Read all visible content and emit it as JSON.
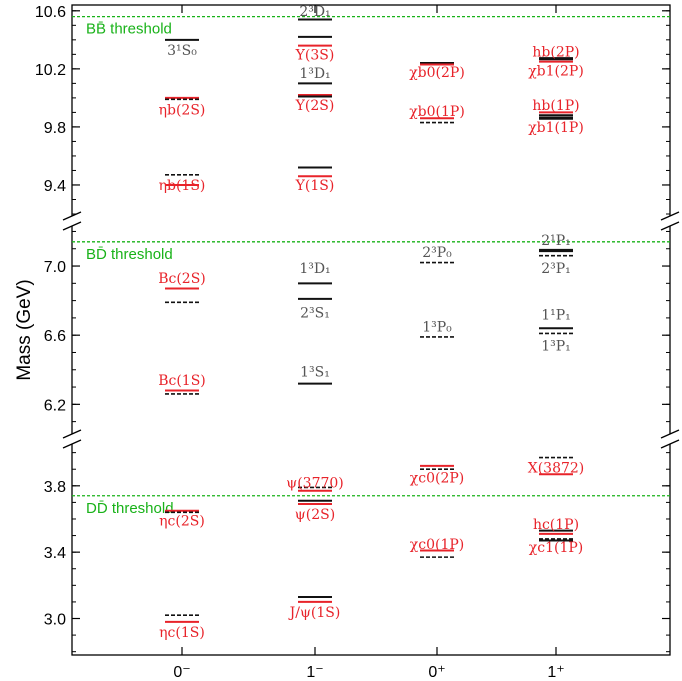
{
  "chart_data": {
    "type": "level-diagram",
    "ylabel": "Mass (GeV)",
    "categories": [
      "0⁻",
      "1⁻",
      "0⁺",
      "1⁺"
    ],
    "panels": [
      {
        "id": "bottomonium",
        "ylim": [
          9.2,
          10.64
        ],
        "ticks": [
          9.4,
          9.8,
          10.2,
          10.6
        ],
        "tick_labels": [
          "9.4",
          "9.8",
          "10.2",
          "10.6"
        ],
        "threshold": {
          "label": "BB̄ threshold",
          "value": 10.56
        },
        "levels": [
          {
            "cat": 0,
            "mass": 10.4,
            "style": "black"
          },
          {
            "cat": 0,
            "mass": 10.0,
            "style": "red"
          },
          {
            "cat": 0,
            "mass": 9.99,
            "style": "dash"
          },
          {
            "cat": 0,
            "mass": 9.47,
            "style": "dash"
          },
          {
            "cat": 0,
            "mass": 9.4,
            "style": "red"
          },
          {
            "cat": 1,
            "mass": 10.54,
            "style": "black"
          },
          {
            "cat": 1,
            "mass": 10.42,
            "style": "black"
          },
          {
            "cat": 1,
            "mass": 10.36,
            "style": "red"
          },
          {
            "cat": 1,
            "mass": 10.1,
            "style": "black"
          },
          {
            "cat": 1,
            "mass": 10.02,
            "style": "red"
          },
          {
            "cat": 1,
            "mass": 10.01,
            "style": "black"
          },
          {
            "cat": 1,
            "mass": 9.52,
            "style": "black"
          },
          {
            "cat": 1,
            "mass": 9.46,
            "style": "red"
          },
          {
            "cat": 2,
            "mass": 10.24,
            "style": "black"
          },
          {
            "cat": 2,
            "mass": 10.23,
            "style": "red"
          },
          {
            "cat": 2,
            "mass": 9.86,
            "style": "red"
          },
          {
            "cat": 2,
            "mass": 9.83,
            "style": "dash"
          },
          {
            "cat": 3,
            "mass": 10.27,
            "style": "thick"
          },
          {
            "cat": 3,
            "mass": 10.25,
            "style": "red"
          },
          {
            "cat": 3,
            "mass": 9.9,
            "style": "red"
          },
          {
            "cat": 3,
            "mass": 9.88,
            "style": "black"
          },
          {
            "cat": 3,
            "mass": 9.86,
            "style": "thick"
          }
        ],
        "labels": [
          {
            "cat": 0,
            "mass": 10.33,
            "text": "3¹S₀",
            "color": "gray"
          },
          {
            "cat": 0,
            "mass": 9.92,
            "text": "ηb(2S)",
            "color": "red"
          },
          {
            "cat": 0,
            "mass": 9.4,
            "text": "ηb(1S)",
            "color": "red"
          },
          {
            "cat": 1,
            "mass": 10.6,
            "text": "2³D₁",
            "color": "gray"
          },
          {
            "cat": 1,
            "mass": 10.3,
            "text": "Υ(3S)",
            "color": "red"
          },
          {
            "cat": 1,
            "mass": 10.17,
            "text": "1³D₁",
            "color": "gray"
          },
          {
            "cat": 1,
            "mass": 9.95,
            "text": "Υ(2S)",
            "color": "red"
          },
          {
            "cat": 1,
            "mass": 9.4,
            "text": "Υ(1S)",
            "color": "red"
          },
          {
            "cat": 2,
            "mass": 10.18,
            "text": "χb0(2P)",
            "color": "red"
          },
          {
            "cat": 2,
            "mass": 9.91,
            "text": "χb0(1P)",
            "color": "red"
          },
          {
            "cat": 3,
            "mass": 10.32,
            "text": "hb(2P)",
            "color": "red"
          },
          {
            "cat": 3,
            "mass": 10.19,
            "text": "χb1(2P)",
            "color": "red"
          },
          {
            "cat": 3,
            "mass": 9.95,
            "text": "hb(1P)",
            "color": "red"
          },
          {
            "cat": 3,
            "mass": 9.8,
            "text": "χb1(1P)",
            "color": "red"
          }
        ]
      },
      {
        "id": "bc",
        "ylim": [
          6.04,
          7.22
        ],
        "ticks": [
          6.2,
          6.6,
          7.0
        ],
        "tick_labels": [
          "6.2",
          "6.6",
          "7.0"
        ],
        "threshold": {
          "label": "BD̄ threshold",
          "value": 7.14
        },
        "levels": [
          {
            "cat": 0,
            "mass": 6.87,
            "style": "red"
          },
          {
            "cat": 0,
            "mass": 6.79,
            "style": "dash"
          },
          {
            "cat": 0,
            "mass": 6.28,
            "style": "red"
          },
          {
            "cat": 0,
            "mass": 6.26,
            "style": "dash"
          },
          {
            "cat": 1,
            "mass": 6.9,
            "style": "black"
          },
          {
            "cat": 1,
            "mass": 6.81,
            "style": "black"
          },
          {
            "cat": 1,
            "mass": 6.32,
            "style": "black"
          },
          {
            "cat": 2,
            "mass": 7.02,
            "style": "dash"
          },
          {
            "cat": 2,
            "mass": 6.59,
            "style": "dash"
          },
          {
            "cat": 3,
            "mass": 7.09,
            "style": "thick"
          },
          {
            "cat": 3,
            "mass": 7.06,
            "style": "dash"
          },
          {
            "cat": 3,
            "mass": 6.64,
            "style": "black"
          },
          {
            "cat": 3,
            "mass": 6.61,
            "style": "dash"
          }
        ],
        "labels": [
          {
            "cat": 0,
            "mass": 6.93,
            "text": "Bc(2S)",
            "color": "red"
          },
          {
            "cat": 0,
            "mass": 6.34,
            "text": "Bc(1S)",
            "color": "red"
          },
          {
            "cat": 1,
            "mass": 6.99,
            "text": "1³D₁",
            "color": "gray"
          },
          {
            "cat": 1,
            "mass": 6.73,
            "text": "2³S₁",
            "color": "gray"
          },
          {
            "cat": 1,
            "mass": 6.39,
            "text": "1³S₁",
            "color": "gray"
          },
          {
            "cat": 2,
            "mass": 7.08,
            "text": "2³P₀",
            "color": "gray"
          },
          {
            "cat": 2,
            "mass": 6.65,
            "text": "1³P₀",
            "color": "gray"
          },
          {
            "cat": 3,
            "mass": 7.15,
            "text": "2¹P₁",
            "color": "gray"
          },
          {
            "cat": 3,
            "mass": 6.99,
            "text": "2³P₁",
            "color": "gray"
          },
          {
            "cat": 3,
            "mass": 6.72,
            "text": "1¹P₁",
            "color": "gray"
          },
          {
            "cat": 3,
            "mass": 6.54,
            "text": "1³P₁",
            "color": "gray"
          }
        ]
      },
      {
        "id": "charmonium",
        "ylim": [
          2.78,
          4.04
        ],
        "ticks": [
          3.0,
          3.4,
          3.8
        ],
        "tick_labels": [
          "3.0",
          "3.4",
          "3.8"
        ],
        "threshold": {
          "label": "DD̄ threshold",
          "value": 3.74
        },
        "levels": [
          {
            "cat": 0,
            "mass": 3.65,
            "style": "red"
          },
          {
            "cat": 0,
            "mass": 3.64,
            "style": "dash"
          },
          {
            "cat": 0,
            "mass": 3.02,
            "style": "dash"
          },
          {
            "cat": 0,
            "mass": 2.98,
            "style": "red"
          },
          {
            "cat": 1,
            "mass": 3.79,
            "style": "dash"
          },
          {
            "cat": 1,
            "mass": 3.77,
            "style": "red"
          },
          {
            "cat": 1,
            "mass": 3.71,
            "style": "black"
          },
          {
            "cat": 1,
            "mass": 3.69,
            "style": "red"
          },
          {
            "cat": 1,
            "mass": 3.13,
            "style": "black"
          },
          {
            "cat": 1,
            "mass": 3.1,
            "style": "red"
          },
          {
            "cat": 2,
            "mass": 3.92,
            "style": "red"
          },
          {
            "cat": 2,
            "mass": 3.9,
            "style": "dash"
          },
          {
            "cat": 2,
            "mass": 3.41,
            "style": "red"
          },
          {
            "cat": 2,
            "mass": 3.37,
            "style": "dash"
          },
          {
            "cat": 3,
            "mass": 3.97,
            "style": "dash"
          },
          {
            "cat": 3,
            "mass": 3.87,
            "style": "red"
          },
          {
            "cat": 3,
            "mass": 3.53,
            "style": "black"
          },
          {
            "cat": 3,
            "mass": 3.51,
            "style": "red"
          },
          {
            "cat": 3,
            "mass": 3.48,
            "style": "dash"
          },
          {
            "cat": 3,
            "mass": 3.47,
            "style": "black"
          }
        ],
        "labels": [
          {
            "cat": 0,
            "mass": 3.59,
            "text": "ηc(2S)",
            "color": "red"
          },
          {
            "cat": 0,
            "mass": 2.92,
            "text": "ηc(1S)",
            "color": "red"
          },
          {
            "cat": 1,
            "mass": 3.82,
            "text": "ψ(3770)",
            "color": "red"
          },
          {
            "cat": 1,
            "mass": 3.63,
            "text": "ψ(2S)",
            "color": "red"
          },
          {
            "cat": 1,
            "mass": 3.04,
            "text": "J/ψ(1S)",
            "color": "red"
          },
          {
            "cat": 2,
            "mass": 3.85,
            "text": "χc0(2P)",
            "color": "red"
          },
          {
            "cat": 2,
            "mass": 3.45,
            "text": "χc0(1P)",
            "color": "red"
          },
          {
            "cat": 3,
            "mass": 3.91,
            "text": "X(3872)",
            "color": "red"
          },
          {
            "cat": 3,
            "mass": 3.57,
            "text": "hc(1P)",
            "color": "red"
          },
          {
            "cat": 3,
            "mass": 3.43,
            "text": "χc1(1P)",
            "color": "red"
          }
        ]
      }
    ],
    "colors": {
      "red": "#e8232a",
      "black": "#111111",
      "gray": "#555555",
      "threshold": "#19b219"
    }
  }
}
